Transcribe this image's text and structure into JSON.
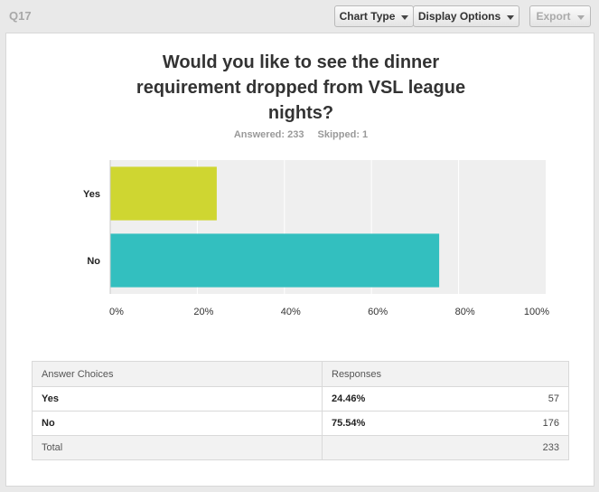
{
  "question": {
    "label": "Q17"
  },
  "toolbar": {
    "chart_type_label": "Chart Type",
    "display_options_label": "Display Options",
    "export_label": "Export"
  },
  "title_lines": [
    "Would you like to see the dinner",
    "requirement dropped from VSL league",
    "nights?"
  ],
  "stats": {
    "answered": "Answered: 233",
    "skipped": "Skipped: 1"
  },
  "colors": {
    "yes_bar": "#cfd631",
    "no_bar": "#33bfbf",
    "plot_bg": "#efefef"
  },
  "chart_data": {
    "type": "bar",
    "orientation": "horizontal",
    "categories": [
      "Yes",
      "No"
    ],
    "values": [
      24.46,
      75.54
    ],
    "xlim": [
      0,
      100
    ],
    "x_ticks": [
      "0%",
      "20%",
      "40%",
      "60%",
      "80%",
      "100%"
    ],
    "grid": true
  },
  "table": {
    "headers": [
      "Answer Choices",
      "Responses"
    ],
    "rows": [
      {
        "label": "Yes",
        "percent": "24.46%",
        "count": "57"
      },
      {
        "label": "No",
        "percent": "75.54%",
        "count": "176"
      }
    ],
    "total": {
      "label": "Total",
      "count": "233"
    }
  }
}
